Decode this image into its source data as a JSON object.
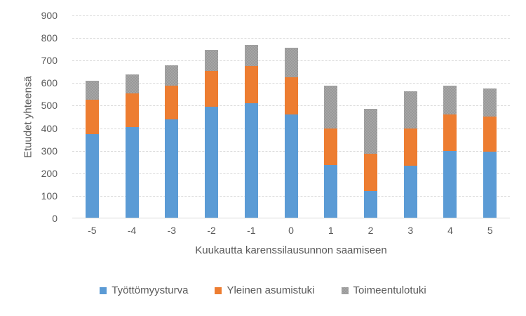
{
  "chart_data": {
    "type": "bar",
    "stacked": true,
    "categories": [
      "-5",
      "-4",
      "-3",
      "-2",
      "-1",
      "0",
      "1",
      "2",
      "3",
      "4",
      "5"
    ],
    "series": [
      {
        "name": "Työttömyysturva",
        "color": "#5b9bd5",
        "pattern": "solid",
        "values": [
          375,
          405,
          440,
          495,
          510,
          460,
          238,
          120,
          235,
          298,
          295
        ]
      },
      {
        "name": "Yleinen asumistuki",
        "color": "#ed7d31",
        "pattern": "solid",
        "values": [
          150,
          150,
          150,
          160,
          165,
          167,
          162,
          168,
          163,
          162,
          158
        ]
      },
      {
        "name": "Toimeentulotuki",
        "color": "#a6a6a6",
        "pattern": "speckled",
        "values": [
          85,
          85,
          88,
          92,
          93,
          129,
          190,
          198,
          167,
          129,
          123
        ]
      }
    ],
    "totals": [
      610,
      640,
      678,
      747,
      768,
      756,
      590,
      486,
      565,
      589,
      576
    ],
    "xlabel": "Kuukautta karenssilausunnon saamiseen",
    "ylabel": "Etuudet yhteensä",
    "ylim": [
      0,
      900
    ],
    "yticks": [
      0,
      100,
      200,
      300,
      400,
      500,
      600,
      700,
      800,
      900
    ],
    "grid": "horizontal-dashed",
    "legend_position": "bottom"
  },
  "colors": {
    "text": "#595959",
    "gridline": "#d9d9d9",
    "background": "#ffffff"
  }
}
